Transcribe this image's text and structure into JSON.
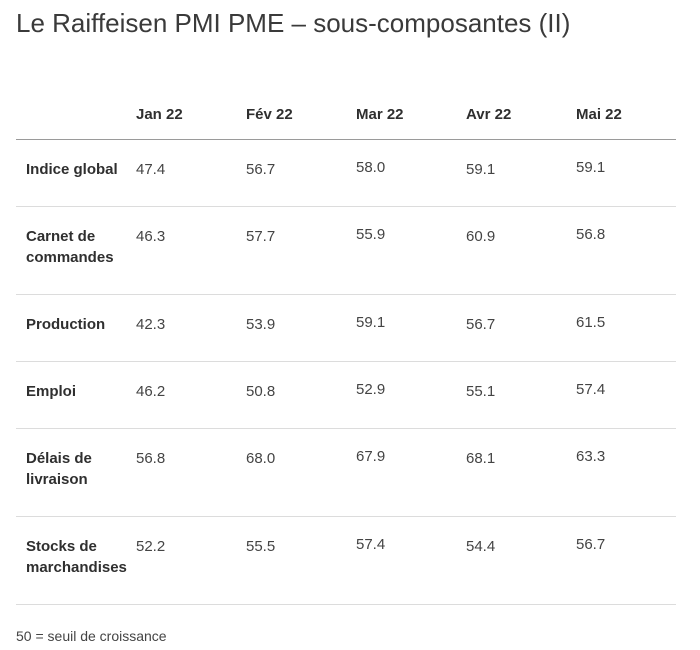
{
  "title": "Le Raiffeisen PMI PME – sous-composantes (II)",
  "columns": [
    "",
    "Jan 22",
    "Fév 22",
    "Mar 22",
    "Avr 22",
    "Mai 22"
  ],
  "rows": [
    {
      "label": "Indice global",
      "values": [
        "47.4",
        "56.7",
        "58.0",
        "59.1",
        "59.1"
      ]
    },
    {
      "label": "Carnet de commandes",
      "values": [
        "46.3",
        "57.7",
        "55.9",
        "60.9",
        "56.8"
      ]
    },
    {
      "label": "Production",
      "values": [
        "42.3",
        "53.9",
        "59.1",
        "56.7",
        "61.5"
      ]
    },
    {
      "label": "Emploi",
      "values": [
        "46.2",
        "50.8",
        "52.9",
        "55.1",
        "57.4"
      ]
    },
    {
      "label": "Délais de livraison",
      "values": [
        "56.8",
        "68.0",
        "67.9",
        "68.1",
        "63.3"
      ]
    },
    {
      "label": "Stocks de marchandises",
      "values": [
        "52.2",
        "55.5",
        "57.4",
        "54.4",
        "56.7"
      ]
    }
  ],
  "footnote": "50 = seuil de croissance"
}
